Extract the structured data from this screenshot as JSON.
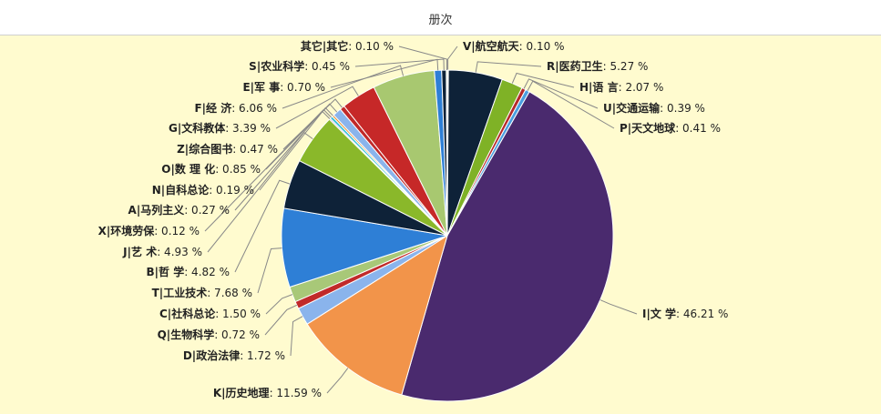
{
  "header": {
    "title": "册次"
  },
  "chart_data": {
    "type": "pie",
    "title": "册次",
    "unit": "%",
    "slices": [
      {
        "label": "V|航空航天",
        "value": 0.1,
        "color": "#e4e4e4",
        "side": "right"
      },
      {
        "label": "R|医药卫生",
        "value": 5.27,
        "color": "#0e2238",
        "side": "right"
      },
      {
        "label": "H|语 言",
        "value": 2.07,
        "color": "#7fb226",
        "side": "right"
      },
      {
        "label": "U|交通运输",
        "value": 0.39,
        "color": "#b52a2a",
        "side": "right"
      },
      {
        "label": "P|天文地球",
        "value": 0.41,
        "color": "#4a9fe0",
        "side": "right"
      },
      {
        "label": "I|文 学",
        "value": 46.21,
        "color": "#4a2a6e",
        "side": "right"
      },
      {
        "label": "K|历史地理",
        "value": 11.59,
        "color": "#f2944a",
        "side": "left"
      },
      {
        "label": "D|政治法律",
        "value": 1.72,
        "color": "#8ab4ec",
        "side": "left"
      },
      {
        "label": "Q|生物科学",
        "value": 0.72,
        "color": "#c12a2a",
        "side": "left"
      },
      {
        "label": "C|社科总论",
        "value": 1.5,
        "color": "#a8c878",
        "side": "left"
      },
      {
        "label": "T|工业技术",
        "value": 7.68,
        "color": "#2e7fd6",
        "side": "left"
      },
      {
        "label": "B|哲 学",
        "value": 4.82,
        "color": "#0e2238",
        "side": "left"
      },
      {
        "label": "J|艺 术",
        "value": 4.93,
        "color": "#8ab82a",
        "side": "left"
      },
      {
        "label": "X|环境劳保",
        "value": 0.12,
        "color": "#8a5ec6",
        "side": "left"
      },
      {
        "label": "A|马列主义",
        "value": 0.27,
        "color": "#38c0d8",
        "side": "left"
      },
      {
        "label": "N|自科总论",
        "value": 0.19,
        "color": "#e8902a",
        "side": "left"
      },
      {
        "label": "O|数 理 化",
        "value": 0.85,
        "color": "#8ab4ec",
        "side": "left"
      },
      {
        "label": "Z|综合图书",
        "value": 0.47,
        "color": "#c12a2a",
        "side": "left"
      },
      {
        "label": "G|文科教体",
        "value": 3.39,
        "color": "#c62828",
        "side": "left"
      },
      {
        "label": "F|经 济",
        "value": 6.06,
        "color": "#a8c870",
        "side": "left"
      },
      {
        "label": "E|军 事",
        "value": 0.7,
        "color": "#2e7fd6",
        "side": "left"
      },
      {
        "label": "S|农业科学",
        "value": 0.45,
        "color": "#0e2238",
        "side": "left"
      },
      {
        "label": "其它|其它",
        "value": 0.1,
        "color": "#7fb226",
        "side": "left"
      }
    ]
  }
}
